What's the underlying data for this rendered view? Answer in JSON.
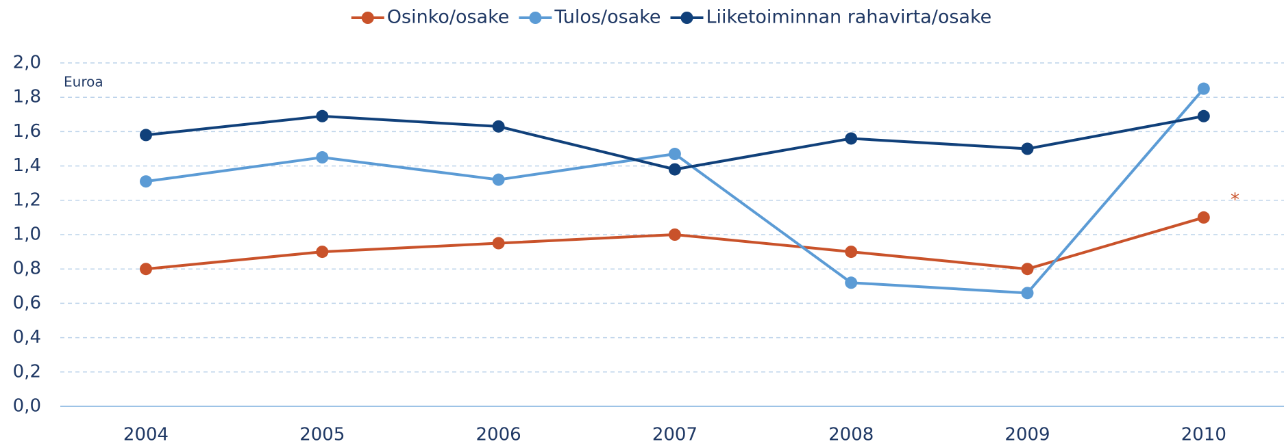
{
  "chart_data": {
    "type": "line",
    "categories": [
      "2004",
      "2005",
      "2006",
      "2007",
      "2008",
      "2009",
      "2010"
    ],
    "series": [
      {
        "name": "Osinko/osake",
        "color": "#c9522a",
        "values": [
          0.8,
          0.9,
          0.95,
          1.0,
          0.9,
          0.8,
          1.1
        ]
      },
      {
        "name": "Tulos/osake",
        "color": "#5b9bd5",
        "values": [
          1.31,
          1.45,
          1.32,
          1.47,
          0.72,
          0.66,
          1.85
        ]
      },
      {
        "name": "Liiketoiminnan rahavirta/osake",
        "color": "#10407a",
        "values": [
          1.58,
          1.69,
          1.63,
          1.38,
          1.56,
          1.5,
          1.69
        ]
      }
    ],
    "ylim": [
      0,
      2
    ],
    "yticks": [
      {
        "value": 0,
        "label": "0,0"
      },
      {
        "value": 0.2,
        "label": "0,2"
      },
      {
        "value": 0.4,
        "label": "0,4"
      },
      {
        "value": 0.6,
        "label": "0,6"
      },
      {
        "value": 0.8,
        "label": "0,8"
      },
      {
        "value": 1.0,
        "label": "1,0"
      },
      {
        "value": 1.2,
        "label": "1,2"
      },
      {
        "value": 1.4,
        "label": "1,4"
      },
      {
        "value": 1.6,
        "label": "1,6"
      },
      {
        "value": 1.8,
        "label": "1,8"
      },
      {
        "value": 2.0,
        "label": "2,0"
      }
    ],
    "grid": true,
    "legend": "top",
    "annotations": [
      "Euroa",
      "*"
    ]
  }
}
